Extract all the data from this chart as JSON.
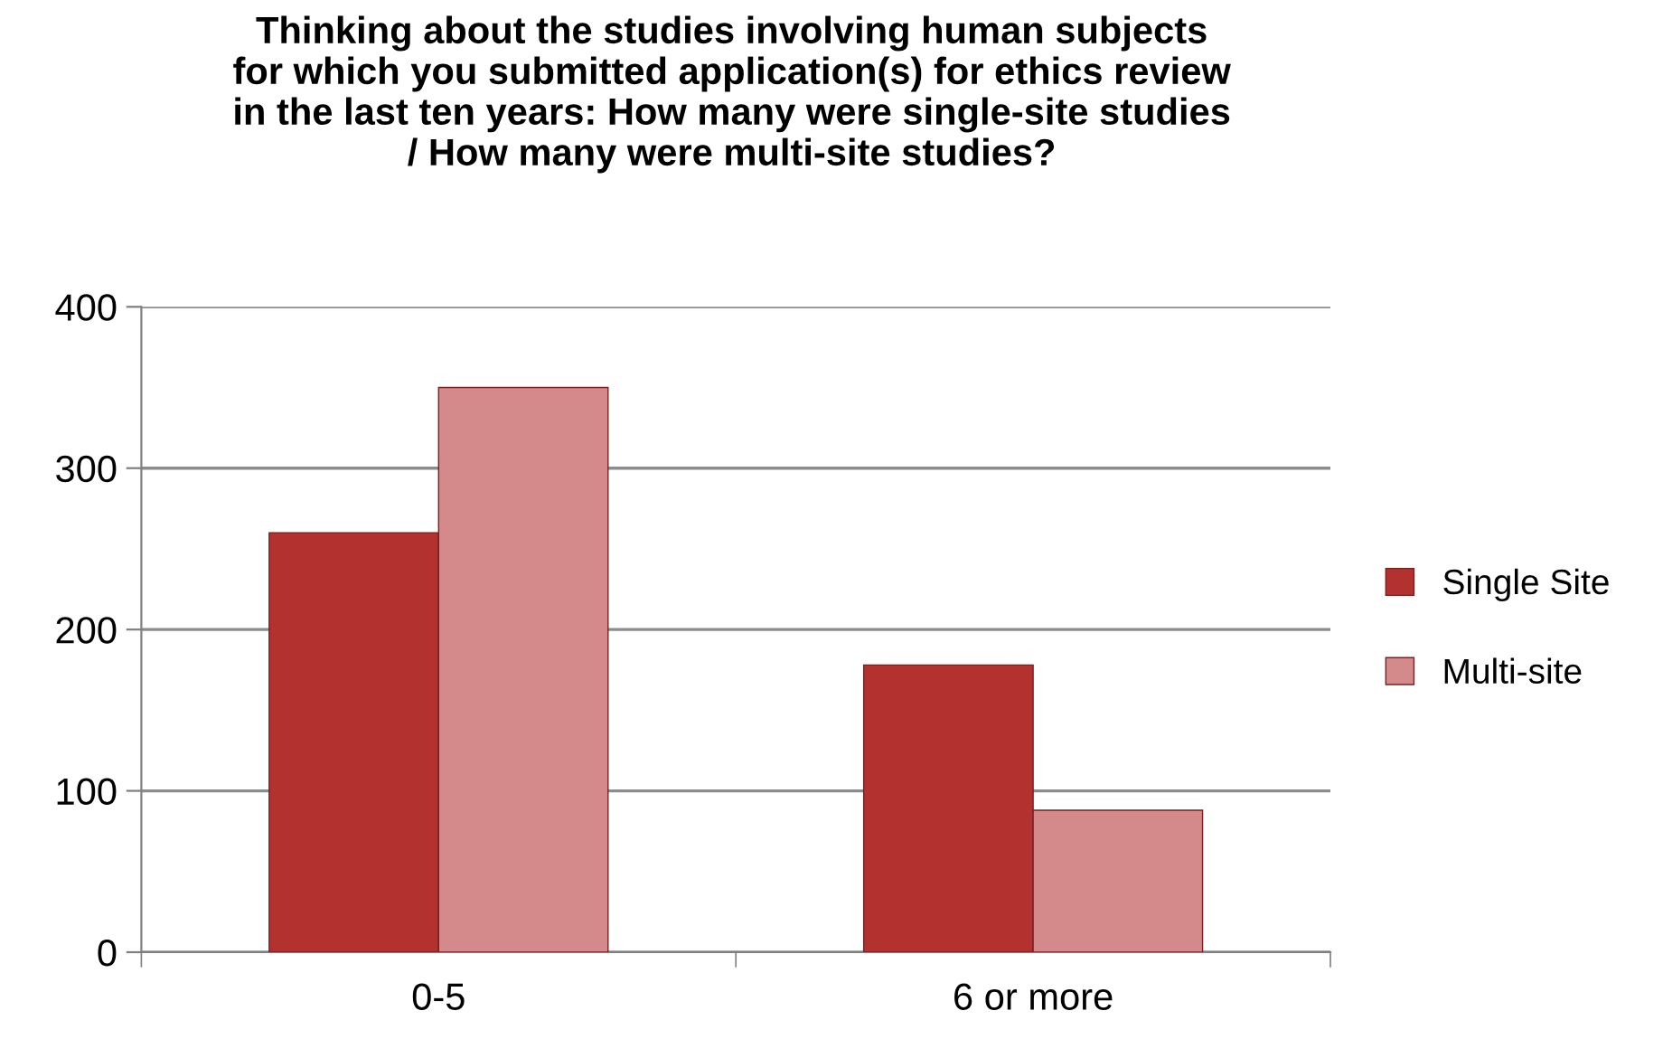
{
  "chart_data": {
    "type": "bar",
    "title": "Thinking about the studies involving human subjects\nfor which you submitted application(s) for ethics review\nin the last ten years: How many were single-site studies\n/ How many were multi-site studies?",
    "categories": [
      "0-5",
      "6 or more"
    ],
    "series": [
      {
        "name": "Single Site",
        "color": "#b3312f",
        "values": [
          260,
          178
        ]
      },
      {
        "name": "Multi-site",
        "color": "#d48a8a",
        "values": [
          350,
          88
        ]
      }
    ],
    "ylim": [
      0,
      400
    ],
    "yticks": [
      0,
      100,
      200,
      300,
      400
    ],
    "grid": "y",
    "legend": "right"
  }
}
